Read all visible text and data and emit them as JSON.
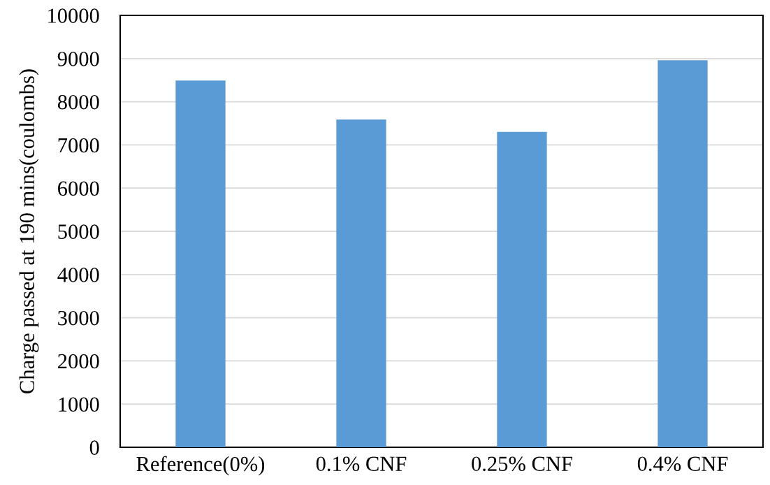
{
  "chart_data": {
    "type": "bar",
    "ylabel": "Charge passed at 190 mins(coulombs)",
    "categories": [
      "Reference(0%)",
      "0.1% CNF",
      "0.25% CNF",
      "0.4% CNF"
    ],
    "values": [
      8490,
      7590,
      7300,
      8960
    ],
    "color": "#5b9bd5",
    "ylim": [
      0,
      10000
    ],
    "yticks": [
      0,
      1000,
      2000,
      3000,
      4000,
      5000,
      6000,
      7000,
      8000,
      9000,
      10000
    ],
    "grid": "y"
  }
}
